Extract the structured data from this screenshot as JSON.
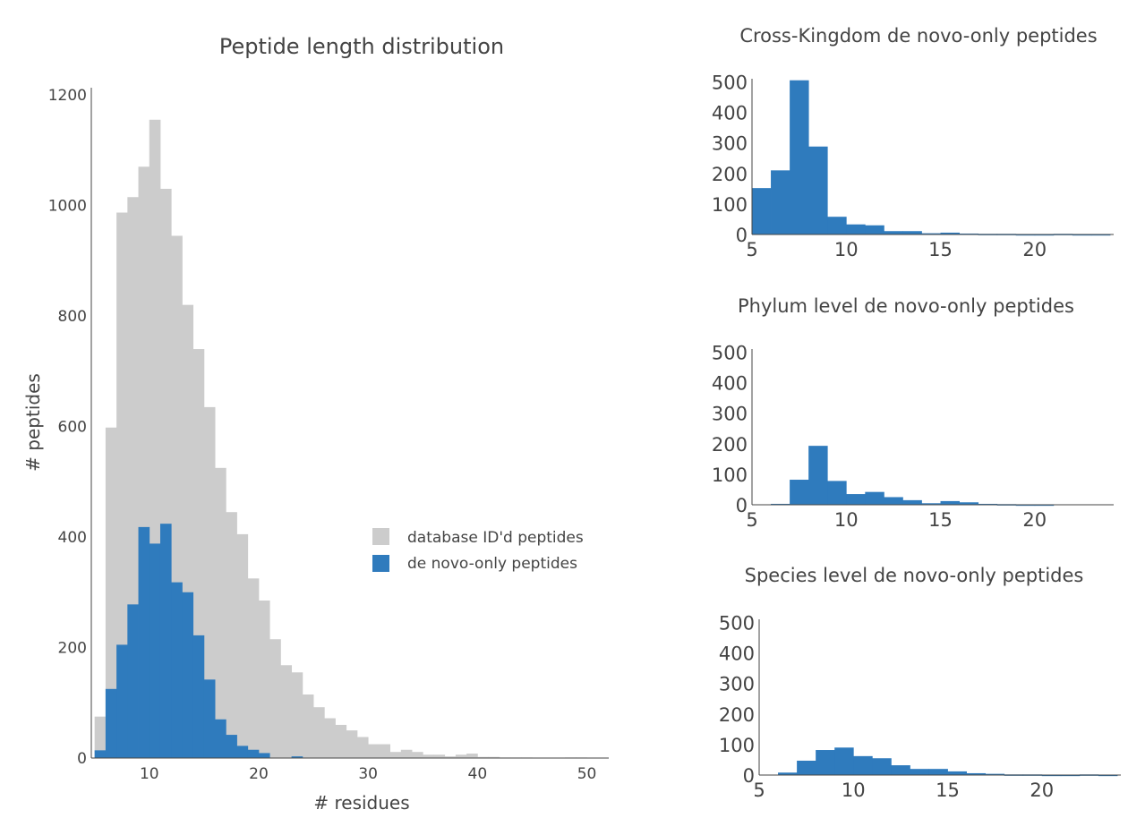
{
  "chart_data": [
    {
      "type": "bar",
      "title": "Peptide length distribution",
      "xlabel": "# residues",
      "ylabel": "# peptides",
      "xlim": [
        4.7,
        52
      ],
      "ylim": [
        0,
        1200
      ],
      "xticks": [
        10,
        20,
        30,
        40,
        50
      ],
      "yticks": [
        0,
        200,
        400,
        600,
        800,
        1000,
        1200
      ],
      "legend_position": "right-middle",
      "bins": [
        5,
        6,
        7,
        8,
        9,
        10,
        11,
        12,
        13,
        14,
        15,
        16,
        17,
        18,
        19,
        20,
        21,
        22,
        23,
        24,
        25,
        26,
        27,
        28,
        29,
        30,
        31,
        32,
        33,
        34,
        35,
        36,
        37,
        38,
        39,
        40,
        41,
        42,
        43,
        44,
        45,
        46,
        47,
        48,
        49,
        50
      ],
      "series": [
        {
          "name": "database ID'd peptides",
          "color": "#cccccc",
          "values": [
            75,
            598,
            987,
            1015,
            1070,
            1155,
            1030,
            945,
            820,
            740,
            635,
            525,
            445,
            405,
            325,
            285,
            215,
            168,
            155,
            115,
            92,
            72,
            60,
            50,
            38,
            25,
            25,
            11,
            15,
            11,
            6,
            6,
            3,
            6,
            8,
            2,
            2,
            1,
            1,
            1,
            0,
            0,
            0,
            1,
            1,
            0
          ]
        },
        {
          "name": "de novo-only peptides",
          "color": "#2f7bbd",
          "values": [
            14,
            125,
            205,
            278,
            418,
            388,
            424,
            318,
            300,
            222,
            142,
            70,
            42,
            22,
            15,
            9,
            0,
            0,
            3,
            0,
            0,
            0,
            0,
            0,
            0,
            0,
            0,
            0,
            0,
            0,
            0,
            0,
            0,
            0,
            0,
            0,
            0,
            0,
            0,
            0,
            0,
            0,
            0,
            0,
            0,
            0
          ]
        }
      ]
    },
    {
      "type": "bar",
      "title": "Cross-Kingdom de novo-only peptides",
      "xlim": [
        5,
        24
      ],
      "ylim": [
        0,
        510
      ],
      "xticks": [
        5,
        10,
        15,
        20
      ],
      "yticks": [
        0,
        100,
        200,
        300,
        400,
        500
      ],
      "color": "#2f7bbd",
      "bins": [
        5,
        6,
        7,
        8,
        9,
        10,
        11,
        12,
        13,
        14,
        15,
        16,
        17,
        18,
        19,
        20,
        21,
        22,
        23
      ],
      "values": [
        152,
        210,
        505,
        288,
        58,
        33,
        30,
        11,
        11,
        4,
        6,
        3,
        2,
        2,
        1,
        1,
        2,
        1,
        1
      ]
    },
    {
      "type": "bar",
      "title": "Phylum level de novo-only peptides",
      "xlim": [
        5,
        24
      ],
      "ylim": [
        0,
        510
      ],
      "xticks": [
        5,
        10,
        15,
        20
      ],
      "yticks": [
        0,
        100,
        200,
        300,
        400,
        500
      ],
      "color": "#2f7bbd",
      "bins": [
        5,
        6,
        7,
        8,
        9,
        10,
        11,
        12,
        13,
        14,
        15,
        16,
        17,
        18,
        19,
        20,
        21,
        22,
        23
      ],
      "values": [
        0,
        3,
        82,
        193,
        78,
        35,
        42,
        25,
        15,
        5,
        12,
        8,
        3,
        2,
        1,
        1,
        0,
        0,
        0
      ]
    },
    {
      "type": "bar",
      "title": "Species level de novo-only peptides",
      "xlim": [
        5,
        24
      ],
      "ylim": [
        0,
        510
      ],
      "xticks": [
        5,
        10,
        15,
        20
      ],
      "yticks": [
        0,
        100,
        200,
        300,
        400,
        500
      ],
      "color": "#2f7bbd",
      "bins": [
        5,
        6,
        7,
        8,
        9,
        10,
        11,
        12,
        13,
        14,
        15,
        16,
        17,
        18,
        19,
        20,
        21,
        22,
        23
      ],
      "values": [
        0,
        8,
        47,
        82,
        90,
        62,
        55,
        32,
        20,
        20,
        12,
        6,
        4,
        2,
        2,
        1,
        1,
        2,
        1
      ]
    }
  ]
}
